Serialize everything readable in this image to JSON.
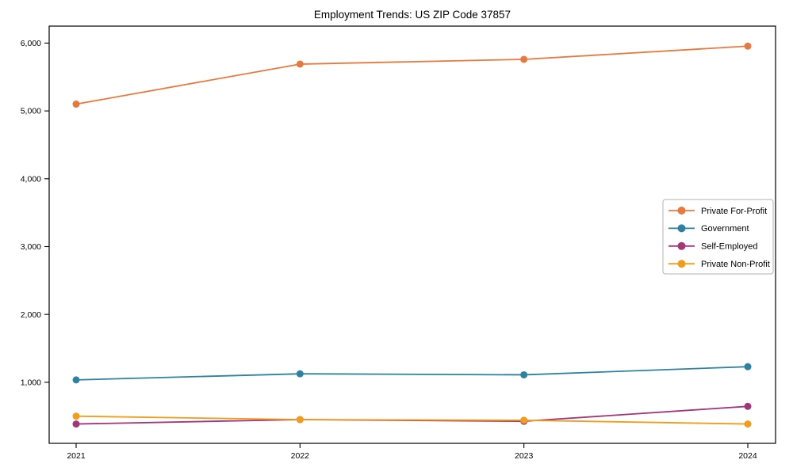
{
  "chart_data": {
    "type": "line",
    "title": "Employment Trends: US ZIP Code 37857",
    "categories": [
      "2021",
      "2022",
      "2023",
      "2024"
    ],
    "series": [
      {
        "name": "Private For-Profit",
        "color": "#e8793e",
        "values": [
          5100,
          5690,
          5760,
          5955
        ]
      },
      {
        "name": "Government",
        "color": "#2d82a2",
        "values": [
          1035,
          1125,
          1110,
          1230
        ]
      },
      {
        "name": "Self-Employed",
        "color": "#a33579",
        "values": [
          385,
          450,
          425,
          645
        ]
      },
      {
        "name": "Private Non-Profit",
        "color": "#f29c1b",
        "values": [
          500,
          450,
          440,
          385
        ]
      }
    ],
    "xlabel": "",
    "ylabel": "",
    "ylim": [
      100,
      6250
    ],
    "yticks": [
      1000,
      2000,
      3000,
      4000,
      5000,
      6000
    ],
    "ytick_labels": [
      "1,000",
      "2,000",
      "3,000",
      "4,000",
      "5,000",
      "6,000"
    ],
    "grid": false,
    "marker": "circle",
    "legend_position": "center-right",
    "frame_color": "#000000",
    "legend_border_color": "#b3b3b3"
  }
}
